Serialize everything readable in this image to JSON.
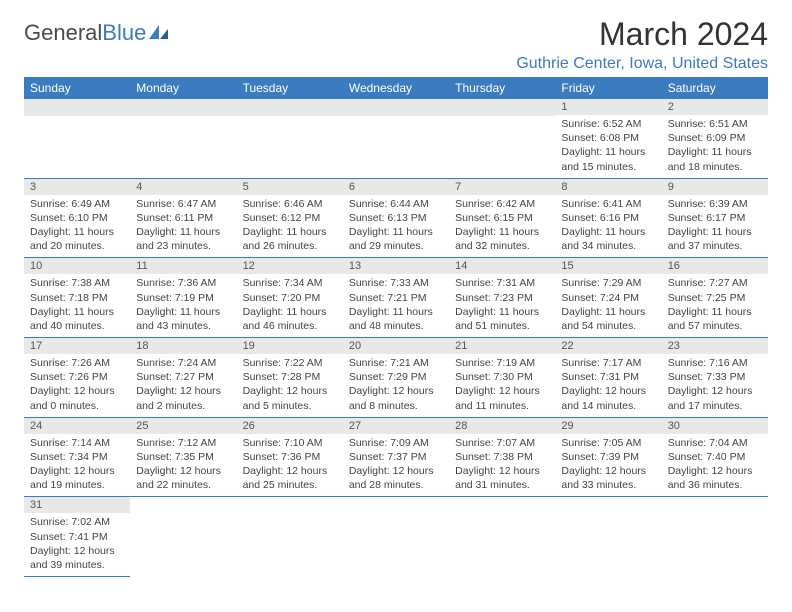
{
  "logo": {
    "text1": "General",
    "text2": "Blue"
  },
  "title": "March 2024",
  "location": "Guthrie Center, Iowa, United States",
  "dayHeaders": [
    "Sunday",
    "Monday",
    "Tuesday",
    "Wednesday",
    "Thursday",
    "Friday",
    "Saturday"
  ],
  "colors": {
    "headerBg": "#3b7bbf",
    "dayNumBg": "#e8e8e8",
    "rowBorder": "#3b7bbf"
  },
  "weeks": [
    [
      null,
      null,
      null,
      null,
      null,
      {
        "n": "1",
        "sr": "6:52 AM",
        "ss": "6:08 PM",
        "dl": "11 hours and 15 minutes."
      },
      {
        "n": "2",
        "sr": "6:51 AM",
        "ss": "6:09 PM",
        "dl": "11 hours and 18 minutes."
      }
    ],
    [
      {
        "n": "3",
        "sr": "6:49 AM",
        "ss": "6:10 PM",
        "dl": "11 hours and 20 minutes."
      },
      {
        "n": "4",
        "sr": "6:47 AM",
        "ss": "6:11 PM",
        "dl": "11 hours and 23 minutes."
      },
      {
        "n": "5",
        "sr": "6:46 AM",
        "ss": "6:12 PM",
        "dl": "11 hours and 26 minutes."
      },
      {
        "n": "6",
        "sr": "6:44 AM",
        "ss": "6:13 PM",
        "dl": "11 hours and 29 minutes."
      },
      {
        "n": "7",
        "sr": "6:42 AM",
        "ss": "6:15 PM",
        "dl": "11 hours and 32 minutes."
      },
      {
        "n": "8",
        "sr": "6:41 AM",
        "ss": "6:16 PM",
        "dl": "11 hours and 34 minutes."
      },
      {
        "n": "9",
        "sr": "6:39 AM",
        "ss": "6:17 PM",
        "dl": "11 hours and 37 minutes."
      }
    ],
    [
      {
        "n": "10",
        "sr": "7:38 AM",
        "ss": "7:18 PM",
        "dl": "11 hours and 40 minutes."
      },
      {
        "n": "11",
        "sr": "7:36 AM",
        "ss": "7:19 PM",
        "dl": "11 hours and 43 minutes."
      },
      {
        "n": "12",
        "sr": "7:34 AM",
        "ss": "7:20 PM",
        "dl": "11 hours and 46 minutes."
      },
      {
        "n": "13",
        "sr": "7:33 AM",
        "ss": "7:21 PM",
        "dl": "11 hours and 48 minutes."
      },
      {
        "n": "14",
        "sr": "7:31 AM",
        "ss": "7:23 PM",
        "dl": "11 hours and 51 minutes."
      },
      {
        "n": "15",
        "sr": "7:29 AM",
        "ss": "7:24 PM",
        "dl": "11 hours and 54 minutes."
      },
      {
        "n": "16",
        "sr": "7:27 AM",
        "ss": "7:25 PM",
        "dl": "11 hours and 57 minutes."
      }
    ],
    [
      {
        "n": "17",
        "sr": "7:26 AM",
        "ss": "7:26 PM",
        "dl": "12 hours and 0 minutes."
      },
      {
        "n": "18",
        "sr": "7:24 AM",
        "ss": "7:27 PM",
        "dl": "12 hours and 2 minutes."
      },
      {
        "n": "19",
        "sr": "7:22 AM",
        "ss": "7:28 PM",
        "dl": "12 hours and 5 minutes."
      },
      {
        "n": "20",
        "sr": "7:21 AM",
        "ss": "7:29 PM",
        "dl": "12 hours and 8 minutes."
      },
      {
        "n": "21",
        "sr": "7:19 AM",
        "ss": "7:30 PM",
        "dl": "12 hours and 11 minutes."
      },
      {
        "n": "22",
        "sr": "7:17 AM",
        "ss": "7:31 PM",
        "dl": "12 hours and 14 minutes."
      },
      {
        "n": "23",
        "sr": "7:16 AM",
        "ss": "7:33 PM",
        "dl": "12 hours and 17 minutes."
      }
    ],
    [
      {
        "n": "24",
        "sr": "7:14 AM",
        "ss": "7:34 PM",
        "dl": "12 hours and 19 minutes."
      },
      {
        "n": "25",
        "sr": "7:12 AM",
        "ss": "7:35 PM",
        "dl": "12 hours and 22 minutes."
      },
      {
        "n": "26",
        "sr": "7:10 AM",
        "ss": "7:36 PM",
        "dl": "12 hours and 25 minutes."
      },
      {
        "n": "27",
        "sr": "7:09 AM",
        "ss": "7:37 PM",
        "dl": "12 hours and 28 minutes."
      },
      {
        "n": "28",
        "sr": "7:07 AM",
        "ss": "7:38 PM",
        "dl": "12 hours and 31 minutes."
      },
      {
        "n": "29",
        "sr": "7:05 AM",
        "ss": "7:39 PM",
        "dl": "12 hours and 33 minutes."
      },
      {
        "n": "30",
        "sr": "7:04 AM",
        "ss": "7:40 PM",
        "dl": "12 hours and 36 minutes."
      }
    ],
    [
      {
        "n": "31",
        "sr": "7:02 AM",
        "ss": "7:41 PM",
        "dl": "12 hours and 39 minutes."
      },
      null,
      null,
      null,
      null,
      null,
      null
    ]
  ],
  "labels": {
    "sunrise": "Sunrise: ",
    "sunset": "Sunset: ",
    "daylight": "Daylight: "
  }
}
